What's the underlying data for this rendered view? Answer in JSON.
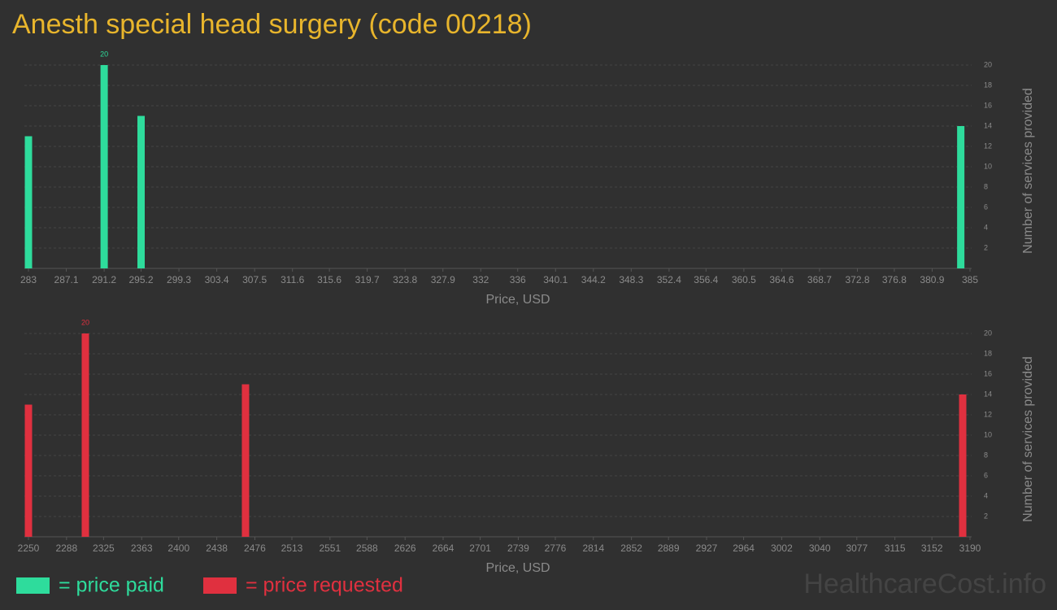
{
  "title": "Anesth special head surgery (code 00218)",
  "watermark": "HealthcareCost.info",
  "chart_data": [
    {
      "type": "bar",
      "x": [
        283,
        291.2,
        295.2,
        384
      ],
      "series": [
        {
          "name": "= price paid",
          "color": "#2edc9c",
          "values": [
            13,
            20,
            15,
            14
          ]
        }
      ],
      "xlim": [
        283,
        385
      ],
      "xticks": [
        283,
        287.1,
        291.2,
        295.2,
        299.3,
        303.4,
        307.5,
        311.6,
        315.6,
        319.7,
        323.8,
        327.9,
        332,
        336,
        340.1,
        344.2,
        348.3,
        352.4,
        356.4,
        360.5,
        364.6,
        368.7,
        372.8,
        376.8,
        380.9,
        385
      ],
      "ylim": [
        0,
        20
      ],
      "yticks": [
        2,
        4,
        6,
        8,
        10,
        12,
        14,
        16,
        18,
        20
      ],
      "xlabel": "Price, USD",
      "ylabel": "Number of services provided",
      "grid": true
    },
    {
      "type": "bar",
      "x": [
        2250,
        2306.8,
        2466.7,
        3182.7
      ],
      "series": [
        {
          "name": "= price requested",
          "color": "#e0303f",
          "values": [
            13,
            20,
            15,
            14
          ]
        }
      ],
      "xlim": [
        2250,
        3190
      ],
      "xticks": [
        2250,
        2288,
        2325,
        2363,
        2400,
        2438,
        2476,
        2513,
        2551,
        2588,
        2626,
        2664,
        2701,
        2739,
        2776,
        2814,
        2852,
        2889,
        2927,
        2964,
        3002,
        3040,
        3077,
        3115,
        3152,
        3190
      ],
      "ylim": [
        0,
        20
      ],
      "yticks": [
        2,
        4,
        6,
        8,
        10,
        12,
        14,
        16,
        18,
        20
      ],
      "xlabel": "Price, USD",
      "ylabel": "Number of services provided",
      "grid": true
    }
  ]
}
